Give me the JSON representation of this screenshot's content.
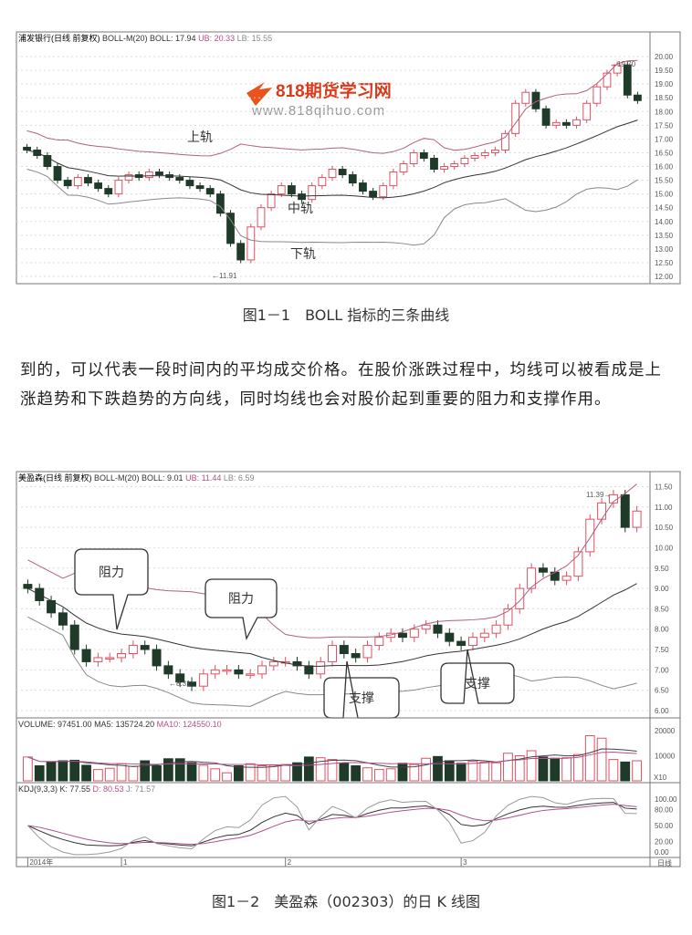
{
  "watermark": {
    "brand": "818期货学习网",
    "url": "www.818qihuo.com"
  },
  "figure1": {
    "caption": "图1－1　BOLL 指标的三条曲线",
    "header": {
      "name": "浦发银行(日线 前复权)",
      "ind": "BOLL-M(20)",
      "boll": "BOLL: 17.94",
      "ub": "UB: 20.33",
      "lb": "LB: 15.55"
    },
    "labels": {
      "upper": "上轨",
      "middle": "中轨",
      "lower": "下轨",
      "low": "11.91",
      "high": "19.70"
    },
    "colors": {
      "up": "#e05060",
      "down": "#1f3a28",
      "band": "#b06080",
      "mid": "#333333"
    }
  },
  "paragraph": "到的，可以代表一段时间内的平均成交价格。在股价涨跌过程中，均线可以被看成是上涨趋势和下跌趋势的方向线，同时均线也会对股价起到重要的阻力和支撑作用。",
  "figure2": {
    "caption": "图1－2　美盈森（002303）的日 K 线图",
    "header": {
      "name": "美盈森(日线 前复权)",
      "ind": "BOLL-M(20)",
      "boll": "BOLL: 9.01",
      "ub": "UB: 11.44",
      "lb": "LB: 6.59"
    },
    "volume_header": {
      "vol": "VOLUME: 97451.00",
      "ma5": "MA5: 135724.20",
      "ma10": "MA10: 124550.10"
    },
    "kdj_header": {
      "name": "KDJ(9,3,3)",
      "k": "K: 77.55",
      "d": "D: 80.53",
      "j": "J: 71.57"
    },
    "labels": {
      "resist1": "阻力",
      "resist2": "阻力",
      "support1": "支撑",
      "support2": "支撑",
      "low": "8.31",
      "high": "11.39"
    },
    "date_labels": [
      "2014年",
      "1",
      "2",
      "3"
    ],
    "period": "日线",
    "vol_unit": "X10"
  },
  "chart_data": [
    {
      "type": "candlestick",
      "ylim": [
        12,
        20.5
      ],
      "yticks": [
        "20.00",
        "19.50",
        "19.00",
        "18.50",
        "18.00",
        "17.50",
        "17.00",
        "16.50",
        "16.00",
        "15.50",
        "15.00",
        "14.50",
        "14.00",
        "13.50",
        "13.00",
        "12.50",
        "12.00"
      ],
      "close": [
        16.6,
        16.4,
        16.0,
        15.5,
        15.3,
        15.6,
        15.4,
        15.2,
        15.0,
        15.5,
        15.7,
        15.6,
        15.8,
        15.7,
        15.6,
        15.5,
        15.3,
        15.2,
        15.0,
        14.3,
        13.2,
        12.6,
        13.8,
        14.5,
        15.0,
        15.3,
        15.0,
        14.8,
        15.3,
        15.6,
        15.9,
        15.7,
        15.4,
        15.1,
        14.9,
        15.3,
        15.8,
        16.1,
        16.5,
        16.3,
        15.9,
        16.0,
        16.1,
        16.3,
        16.4,
        16.5,
        16.6,
        17.2,
        18.3,
        18.7,
        18.1,
        17.5,
        17.6,
        17.5,
        17.7,
        18.3,
        18.9,
        19.4,
        19.7,
        18.6,
        18.4
      ]
    },
    {
      "type": "candlestick",
      "ylim": [
        6,
        11.6
      ],
      "yticks": [
        "11.50",
        "11.00",
        "10.50",
        "10.00",
        "9.50",
        "9.00",
        "8.50",
        "8.00",
        "7.50",
        "7.00",
        "6.50",
        "6.00"
      ],
      "close": [
        9.0,
        8.7,
        8.4,
        8.1,
        7.5,
        7.2,
        7.3,
        7.3,
        7.4,
        7.6,
        7.5,
        7.1,
        6.9,
        6.7,
        6.6,
        6.9,
        7.0,
        7.0,
        6.9,
        6.9,
        7.1,
        7.2,
        7.2,
        7.1,
        6.9,
        7.2,
        7.6,
        7.4,
        7.3,
        7.6,
        7.8,
        7.9,
        7.8,
        8.0,
        8.1,
        7.9,
        7.7,
        7.6,
        7.8,
        7.9,
        8.1,
        8.5,
        9.0,
        9.5,
        9.4,
        9.2,
        9.3,
        9.9,
        10.7,
        11.1,
        11.3,
        10.5,
        10.9
      ],
      "volume": [
        95,
        60,
        75,
        80,
        82,
        62,
        45,
        50,
        68,
        58,
        80,
        60,
        88,
        88,
        72,
        62,
        48,
        32,
        60,
        68,
        60,
        62,
        65,
        72,
        95,
        92,
        85,
        70,
        60,
        52,
        45,
        48,
        70,
        65,
        90,
        97,
        80,
        70,
        78,
        75,
        72,
        110,
        100,
        120,
        95,
        90,
        92,
        105,
        180,
        170,
        85,
        75,
        80
      ],
      "vol_yticks": [
        "20000",
        "10000"
      ],
      "kdj_yticks": [
        "100.00",
        "80.00",
        "50.00",
        "20.00",
        "0.00"
      ]
    }
  ]
}
